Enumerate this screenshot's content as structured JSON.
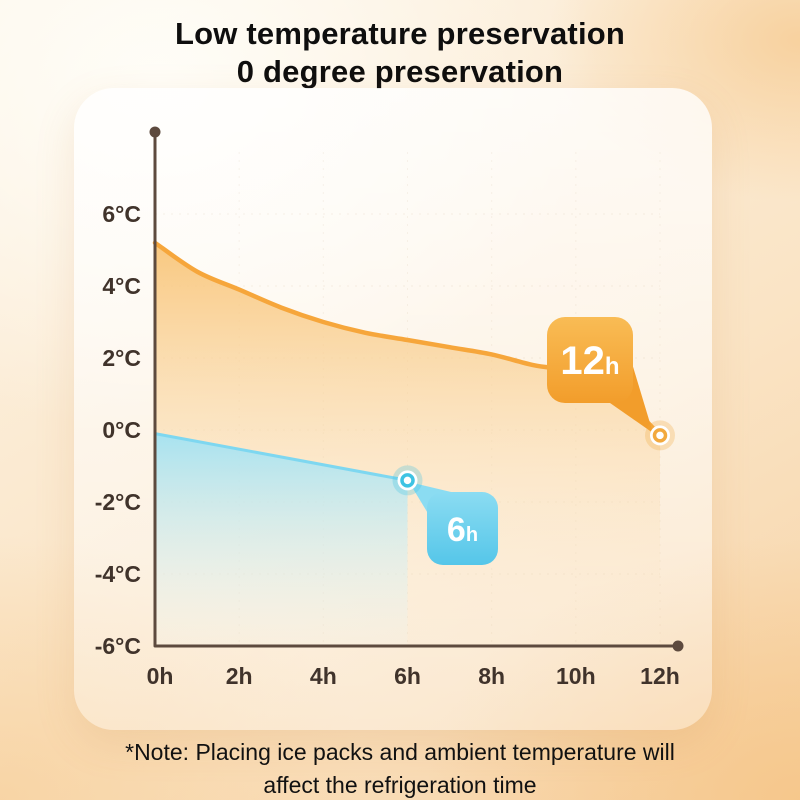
{
  "title": {
    "line1": "Low temperature preservation",
    "line2": "0 degree preservation"
  },
  "note": {
    "line1": "*Note: Placing ice packs and ambient temperature will",
    "line2": "affect the refrigeration time"
  },
  "colors": {
    "axis": "#5D4A3E",
    "accent_orange": "#F6A63B",
    "accent_blue": "#55C9E8",
    "background_top": "#FFFDF8",
    "background_bottom": "#F7D3A6"
  },
  "chart_data": {
    "type": "area",
    "title": "Low temperature preservation — 0 degree preservation",
    "xlabel": "",
    "ylabel": "",
    "xlim": [
      0,
      12
    ],
    "ylim": [
      -6,
      7
    ],
    "grid": "faint",
    "legend": "none",
    "x_ticks": [
      0,
      2,
      4,
      6,
      8,
      10,
      12
    ],
    "x_tick_labels": [
      "0h",
      "2h",
      "4h",
      "6h",
      "8h",
      "10h",
      "12h"
    ],
    "y_ticks": [
      6,
      4,
      2,
      0,
      -2,
      -4,
      -6
    ],
    "y_tick_labels": [
      "6°C",
      "4°C",
      "2°C",
      "0°C",
      "-2°C",
      "-4°C",
      "-6°C"
    ],
    "series": [
      {
        "name": "preservation-12h",
        "line_color": "#F6A63B",
        "marker_color": "#F2A93E",
        "fill_top": "#F8C272",
        "fill_bottom": "#FCEFDB",
        "x": [
          0,
          1,
          2,
          3,
          4,
          5,
          6,
          7,
          8,
          9,
          10,
          11,
          12
        ],
        "values": [
          5.2,
          4.4,
          3.9,
          3.4,
          3.0,
          2.7,
          2.5,
          2.3,
          2.1,
          1.8,
          1.6,
          1.0,
          -0.15
        ],
        "endpoint": {
          "x": 12,
          "y": -0.15
        },
        "badge": {
          "value": "12",
          "unit": "h",
          "color_top": "#F9BC55",
          "color_bottom": "#F29D2B"
        }
      },
      {
        "name": "preservation-6h",
        "line_color": "#7ED7F0",
        "marker_color": "#3EC3E3",
        "fill_top": "#9EE2F5",
        "fill_bottom": "#E9F9FD",
        "x": [
          0,
          6
        ],
        "values": [
          -0.1,
          -1.4
        ],
        "endpoint": {
          "x": 6,
          "y": -1.4
        },
        "badge": {
          "value": "6",
          "unit": "h",
          "color_top": "#8BDCF2",
          "color_bottom": "#55C6E9"
        }
      }
    ]
  }
}
